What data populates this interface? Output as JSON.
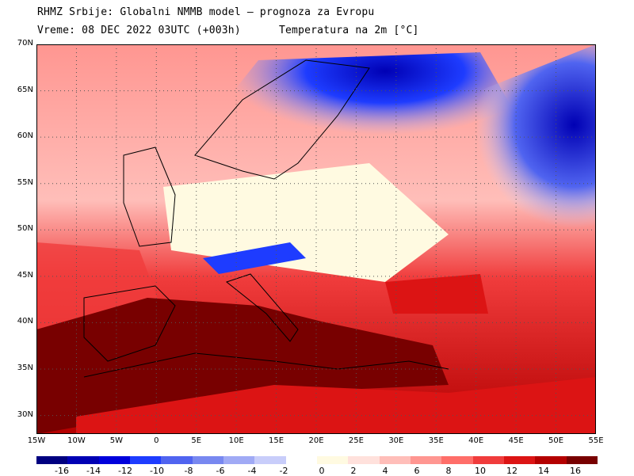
{
  "header": {
    "line1": "RHMZ Srbije: Globalni NMMB model — prognoza za Evropu",
    "line2": "Vreme: 08 DEC 2022 03UTC (+003h)",
    "line3": "Temperatura na 2m [°C]"
  },
  "map": {
    "lat_labels": [
      "70N",
      "65N",
      "60N",
      "55N",
      "50N",
      "45N",
      "40N",
      "35N",
      "30N"
    ],
    "lon_labels": [
      "15W",
      "10W",
      "5W",
      "0",
      "5E",
      "10E",
      "15E",
      "20E",
      "25E",
      "30E",
      "35E",
      "40E",
      "45E",
      "50E",
      "55E"
    ],
    "lat_values": [
      70,
      65,
      60,
      55,
      50,
      45,
      40,
      35,
      30
    ],
    "lon_values": [
      -15,
      -10,
      -5,
      0,
      5,
      10,
      15,
      20,
      25,
      30,
      35,
      40,
      45,
      50,
      55
    ],
    "lon_range": [
      -15,
      55
    ],
    "lat_range": [
      28,
      70
    ]
  },
  "legend": {
    "labels": [
      "-16",
      "-14",
      "-12",
      "-10",
      "-8",
      "-6",
      "-4",
      "-2",
      "0",
      "2",
      "4",
      "6",
      "8",
      "10",
      "12",
      "14",
      "16"
    ],
    "cold_colors": [
      "#000080",
      "#0000b4",
      "#0000dc",
      "#1e3cff",
      "#5064f0",
      "#7888f0",
      "#a0aaf5",
      "#c8cdfa"
    ],
    "warm_colors": [
      "#fffae1",
      "#ffe1dc",
      "#ffbeb9",
      "#ff9691",
      "#ff6e69",
      "#f03c3c",
      "#dc1414",
      "#b40000",
      "#780000"
    ]
  }
}
